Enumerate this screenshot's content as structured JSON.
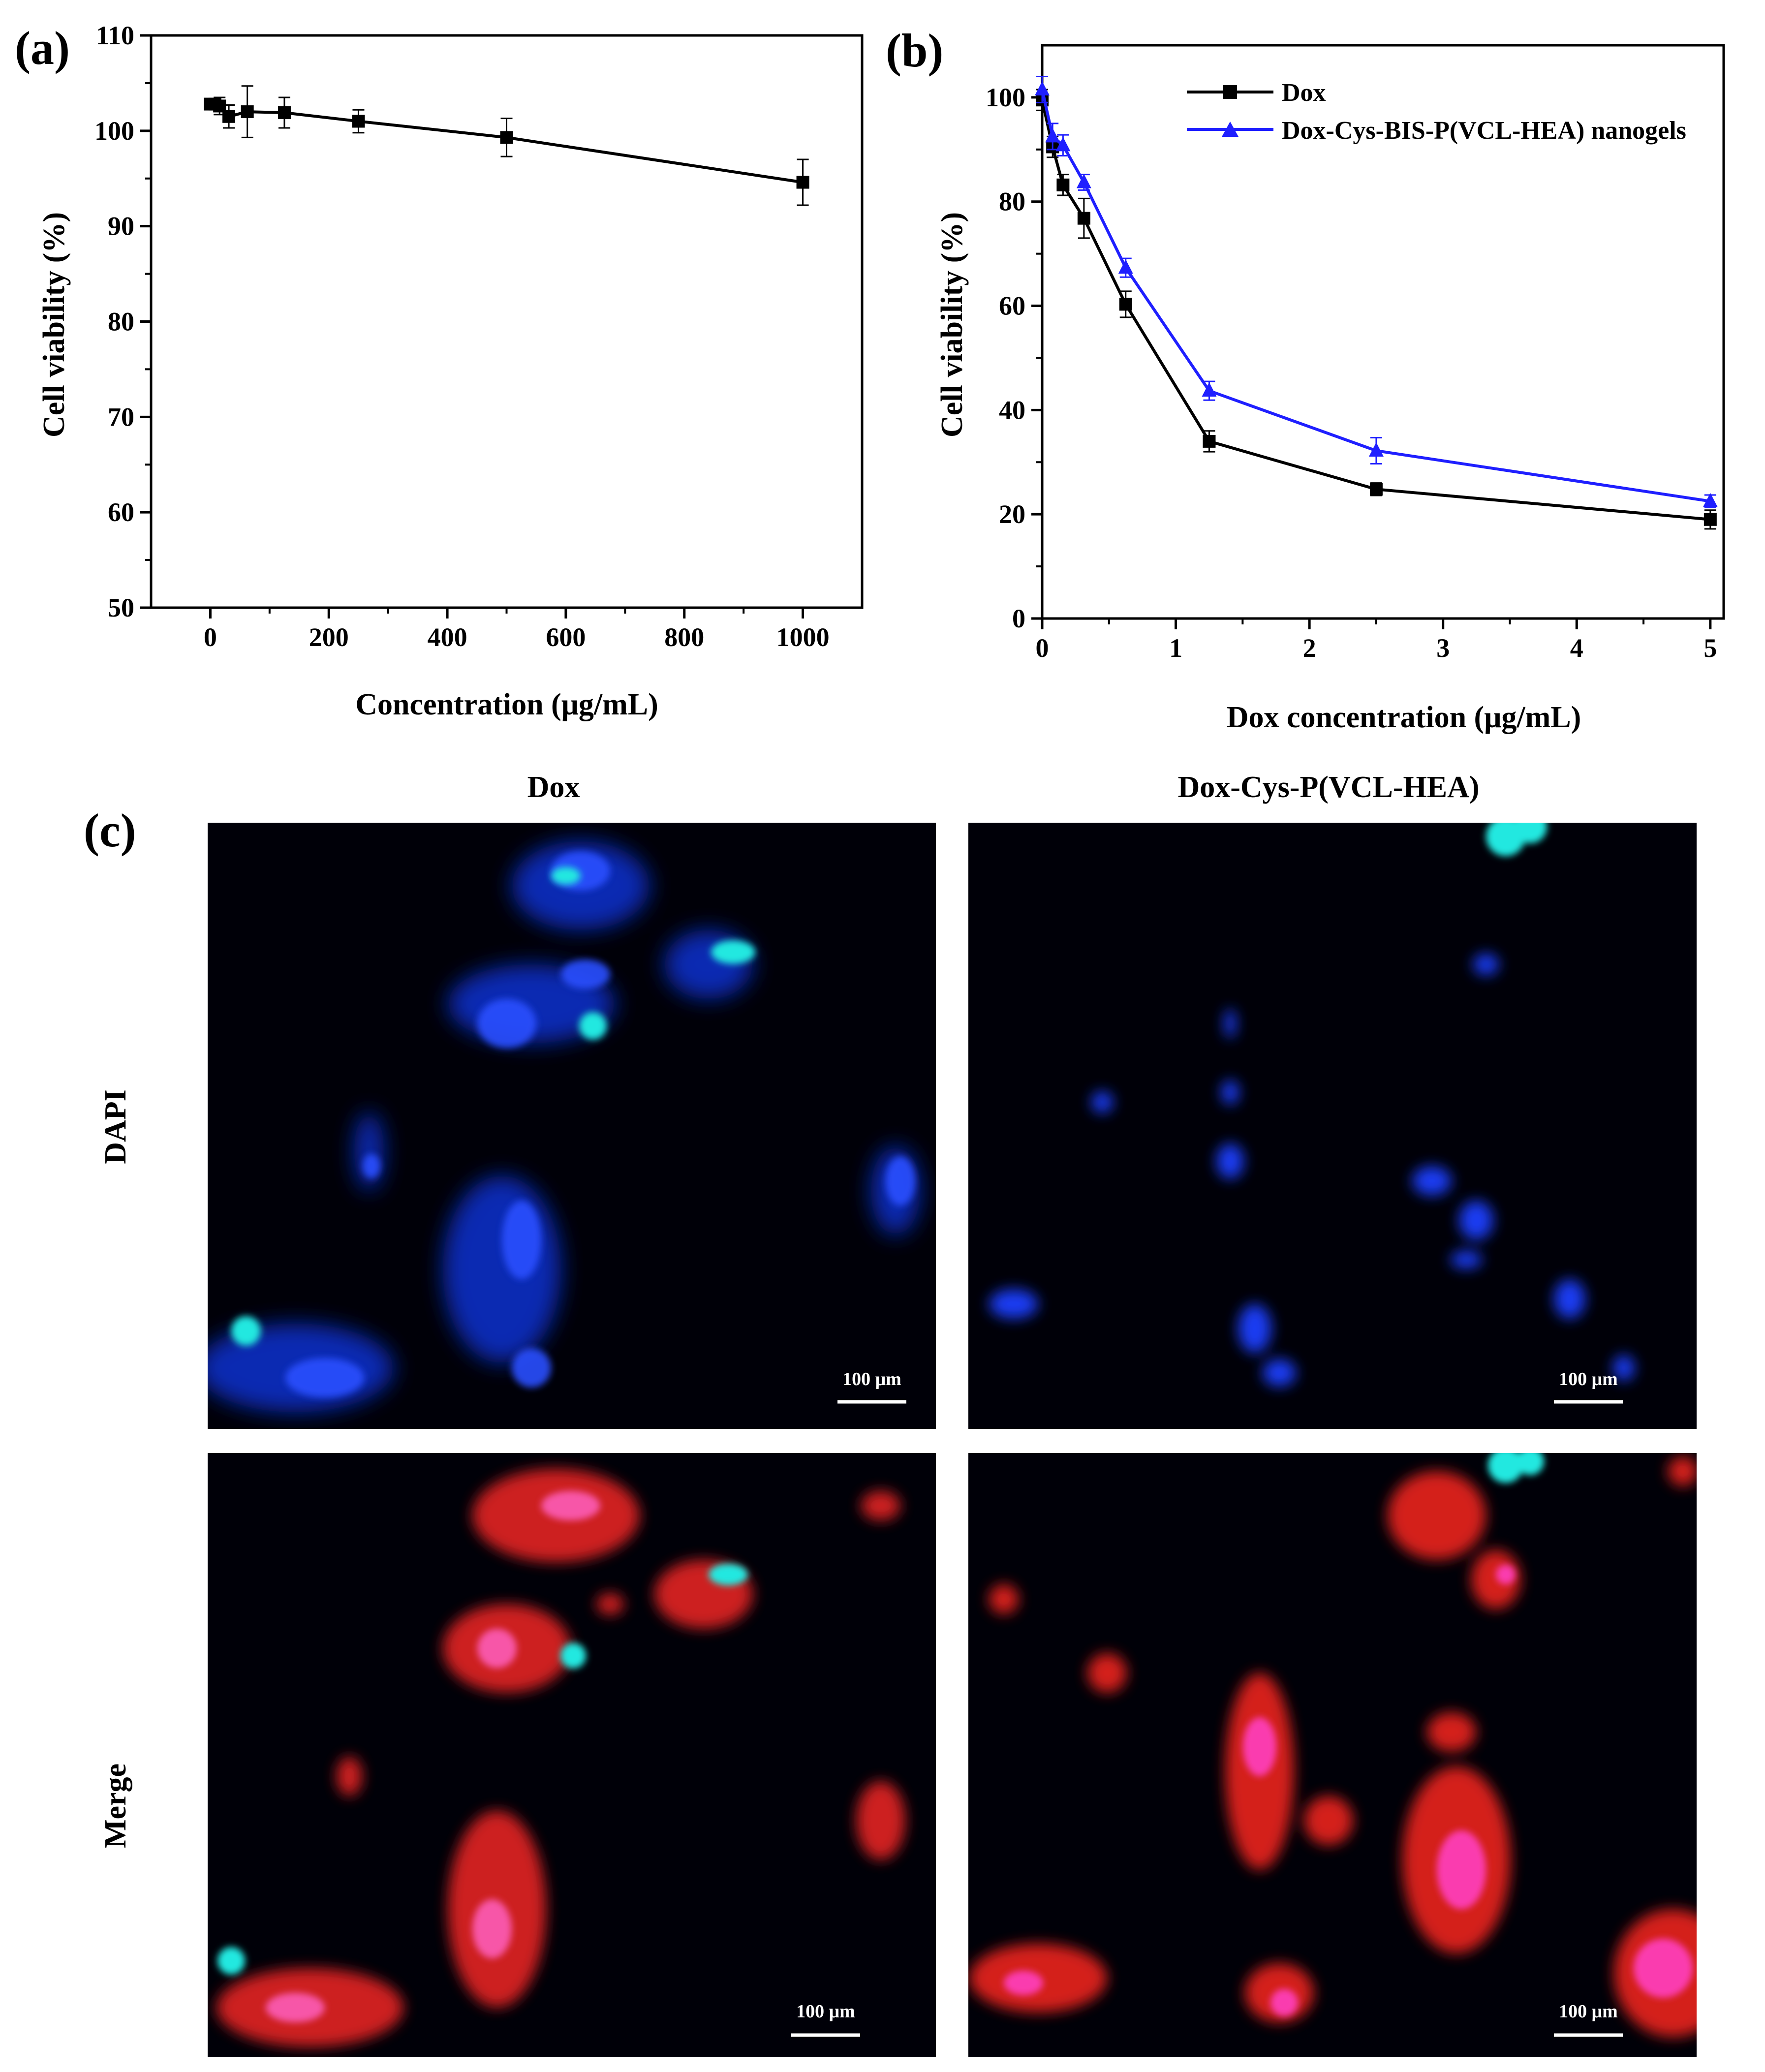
{
  "panel_labels": {
    "a": "(a)",
    "b": "(b)",
    "c": "(c)"
  },
  "chart_data": [
    {
      "id": "a",
      "type": "scatter",
      "title": "",
      "xlabel": "Concentration (μg/mL)",
      "ylabel": "Cell viability (%)",
      "xlim": [
        -100,
        1100
      ],
      "ylim": [
        50,
        110
      ],
      "xticks": [
        0,
        200,
        400,
        600,
        800,
        1000
      ],
      "yticks": [
        50,
        60,
        70,
        80,
        90,
        100,
        110
      ],
      "grid": false,
      "legend": "none",
      "series": [
        {
          "color": "#000000",
          "marker": "square",
          "x": [
            0,
            7.8,
            15.6,
            31.25,
            62.5,
            125,
            250,
            500,
            1000
          ],
          "y": [
            102.8,
            102.8,
            102.6,
            101.5,
            102.0,
            101.9,
            101.0,
            99.3,
            94.6
          ],
          "err": [
            0.4,
            0.5,
            0.9,
            1.2,
            2.7,
            1.6,
            1.2,
            2.0,
            2.4
          ]
        }
      ]
    },
    {
      "id": "b",
      "type": "line",
      "title": "",
      "xlabel": "Dox concentration (μg/mL)",
      "ylabel": "Cell viability (%)",
      "xlim": [
        0,
        5.1
      ],
      "ylim": [
        0,
        110
      ],
      "xticks": [
        0,
        1,
        2,
        3,
        4,
        5
      ],
      "yticks": [
        0,
        20,
        40,
        60,
        80,
        100
      ],
      "grid": false,
      "legend": "top-right",
      "series": [
        {
          "name": "Dox",
          "color": "#000000",
          "marker": "square",
          "x": [
            0,
            0.078,
            0.156,
            0.3125,
            0.625,
            1.25,
            2.5,
            5
          ],
          "y": [
            99.5,
            90.5,
            83.2,
            76.8,
            60.3,
            34.0,
            24.8,
            19.0
          ],
          "err": [
            2.0,
            2.0,
            2.0,
            3.8,
            2.5,
            2.0,
            1.2,
            1.8
          ]
        },
        {
          "name": "Dox-Cys-BIS-P(VCL-HEA) nanogels",
          "color": "#1f1fff",
          "marker": "triangle",
          "x": [
            0,
            0.078,
            0.156,
            0.3125,
            0.625,
            1.25,
            2.5,
            5
          ],
          "y": [
            101.5,
            92.5,
            90.8,
            83.7,
            67.3,
            43.7,
            32.2,
            22.5
          ],
          "err": [
            2.5,
            2.5,
            2.0,
            1.5,
            1.8,
            1.8,
            2.5,
            1.2
          ]
        }
      ]
    }
  ],
  "panel_c": {
    "column_titles": [
      "Dox",
      "Dox-Cys-P(VCL-HEA)"
    ],
    "row_labels": [
      "DAPI",
      "Merge"
    ],
    "scale_bar_text": "100 μm",
    "colors": {
      "background": "#000008",
      "dapi": "#1a3cff",
      "dapi_bright": "#20e8e0",
      "dox": "#e0201c",
      "merge_pink": "#ff40c0"
    }
  }
}
